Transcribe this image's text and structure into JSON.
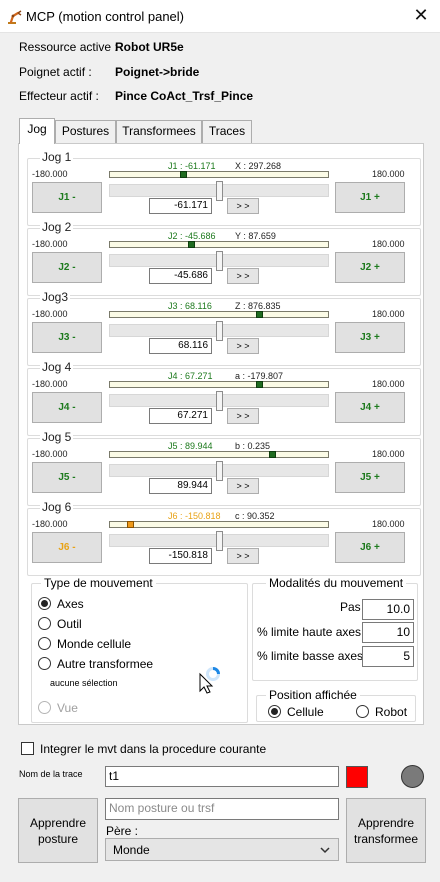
{
  "window": {
    "title": "MCP (motion control panel)",
    "close_label": "✕"
  },
  "info": {
    "resource_label": "Ressource active :",
    "resource_value": "Robot UR5e",
    "wrist_label": "Poignet actif :",
    "wrist_value": "Poignet->bride",
    "effector_label": "Effecteur actif :",
    "effector_value": "Pince CoAct_Trsf_Pince"
  },
  "tabs": [
    {
      "label": "Jog",
      "active": true
    },
    {
      "label": "Postures",
      "active": false
    },
    {
      "label": "Transformees",
      "active": false
    },
    {
      "label": "Traces",
      "active": false
    }
  ],
  "jogs": [
    {
      "title": "Jog 1",
      "min": "-180.000",
      "max": "180.000",
      "j_readout": "J1 : -61.171",
      "c_readout": "X : 297.268",
      "value": "-61.171",
      "go_label": "> >",
      "minus_label": "J1 -",
      "plus_label": "J1 +",
      "pos_fraction": 0.33,
      "color": "#1d7a1d",
      "warning": false
    },
    {
      "title": "Jog 2",
      "min": "-180.000",
      "max": "180.000",
      "j_readout": "J2 : -45.686",
      "c_readout": "Y : 87.659",
      "value": "-45.686",
      "go_label": "> >",
      "minus_label": "J2 -",
      "plus_label": "J2 +",
      "pos_fraction": 0.37,
      "color": "#1d7a1d",
      "warning": false
    },
    {
      "title": "Jog3",
      "min": "-180.000",
      "max": "180.000",
      "j_readout": "J3 : 68.116",
      "c_readout": "Z : 876.835",
      "value": "68.116",
      "go_label": "> >",
      "minus_label": "J3 -",
      "plus_label": "J3 +",
      "pos_fraction": 0.69,
      "color": "#1d7a1d",
      "warning": false
    },
    {
      "title": "Jog 4",
      "min": "-180.000",
      "max": "180.000",
      "j_readout": "J4 : 67.271",
      "c_readout": "a : -179.807",
      "value": "67.271",
      "go_label": "> >",
      "minus_label": "J4 -",
      "plus_label": "J4 +",
      "pos_fraction": 0.69,
      "color": "#1d7a1d",
      "warning": false
    },
    {
      "title": "Jog 5",
      "min": "-180.000",
      "max": "180.000",
      "j_readout": "J5 : 89.944",
      "c_readout": "b : 0.235",
      "value": "89.944",
      "go_label": "> >",
      "minus_label": "J5 -",
      "plus_label": "J5 +",
      "pos_fraction": 0.75,
      "color": "#1d7a1d",
      "warning": false
    },
    {
      "title": "Jog 6",
      "min": "-180.000",
      "max": "180.000",
      "j_readout": "J6 : -150.818",
      "c_readout": "c : 90.352",
      "value": "-150.818",
      "go_label": "> >",
      "minus_label": "J6 -",
      "plus_label": "J6 +",
      "pos_fraction": 0.08,
      "color": "#e8a317",
      "warning": true
    }
  ],
  "movement_type": {
    "title": "Type de mouvement",
    "options": [
      {
        "label": "Axes",
        "checked": true,
        "disabled": false
      },
      {
        "label": "Outil",
        "checked": false,
        "disabled": false
      },
      {
        "label": "Monde cellule",
        "checked": false,
        "disabled": false
      },
      {
        "label": "Autre transformee",
        "checked": false,
        "disabled": false
      }
    ],
    "no_selection": "aucune sélection",
    "vue_label": "Vue"
  },
  "modalities": {
    "title": "Modalités du mouvement",
    "pas_label": "Pas",
    "pas_value": "10.0",
    "high_limit_label": "% limite haute axes",
    "high_limit_value": "10",
    "low_limit_label": "% limite basse axes",
    "low_limit_value": "5"
  },
  "displayed_position": {
    "title": "Position affichée",
    "cellule_label": "Cellule",
    "robot_label": "Robot",
    "selected": "Cellule"
  },
  "integrate_label": "Integrer le mvt dans la procedure courante",
  "trace": {
    "name_label": "Nom de la trace",
    "name_value": "t1",
    "swatch_color": "#ff0000",
    "indicator_color": "#7a7a7a"
  },
  "footer": {
    "learn_posture": "Apprendre posture",
    "posture_placeholder": "Nom posture ou trsf",
    "parent_label": "Père :",
    "parent_value": "Monde",
    "learn_transform": "Apprendre transformee"
  },
  "icons": {
    "app": "robot-arm-icon",
    "close": "close-icon",
    "dropdown": "chevron-down-icon",
    "busy": "loading-spinner-icon",
    "cursor": "mouse-pointer-icon"
  }
}
